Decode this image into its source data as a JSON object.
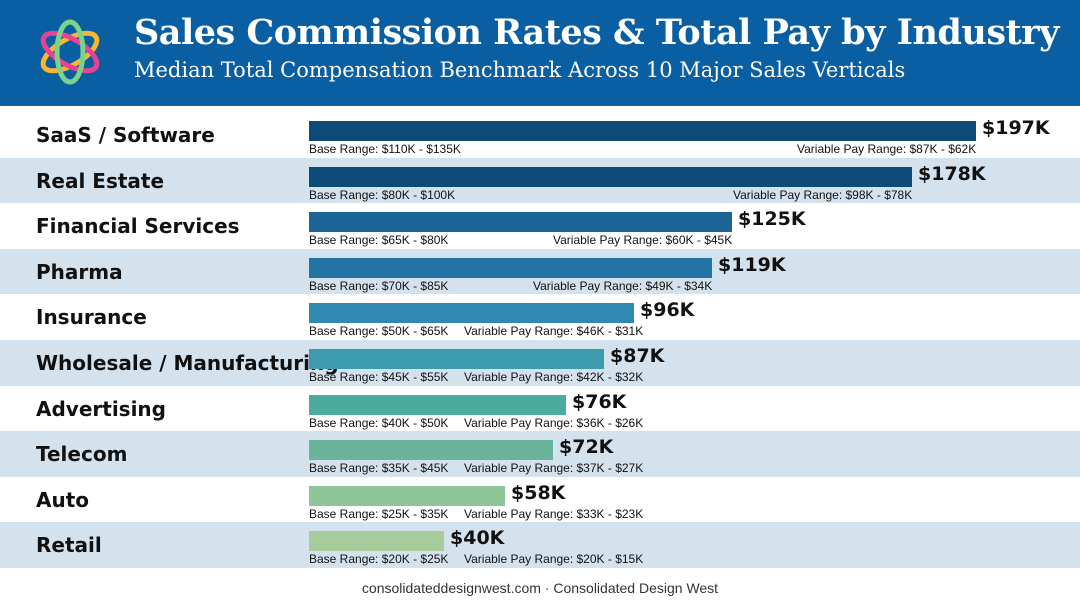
{
  "header": {
    "title": "Sales Commission Rates & Total Pay by Industry",
    "subtitle": "Median Total Compensation Benchmark Across 10 Major Sales Verticals",
    "logo_icon": "interlocking-rings-logo"
  },
  "footer": {
    "text": "consolidateddesignwest.com · Consolidated Design West"
  },
  "colors": {
    "header_bg": "#0a5ea2",
    "alt_row_bg": "#d4e2ee",
    "bar_colors": [
      "#0d4a78",
      "#0d4a78",
      "#1a6496",
      "#2474a3",
      "#3188b0",
      "#3e9aae",
      "#4dab9e",
      "#6ab59a",
      "#8ec59a",
      "#a6cc9c"
    ]
  },
  "chart_data": {
    "type": "bar",
    "orientation": "horizontal",
    "title": "Sales Commission Rates & Total Pay by Industry",
    "subtitle": "Median Total Compensation Benchmark Across 10 Major Sales Verticals",
    "xlim": [
      0,
      197
    ],
    "grid": false,
    "categories": [
      "SaaS / Software",
      "Real Estate",
      "Financial Services",
      "Pharma",
      "Insurance",
      "Wholesale / Manufacturing",
      "Advertising",
      "Telecom",
      "Auto",
      "Retail"
    ],
    "values": [
      197,
      178,
      125,
      119,
      96,
      87,
      76,
      72,
      58,
      40
    ],
    "value_labels": [
      "$197K",
      "$178K",
      "$125K",
      "$119K",
      "$96K",
      "$87K",
      "$76K",
      "$72K",
      "$58K",
      "$40K"
    ],
    "base_range_labels": [
      "Base Range: $110K - $135K",
      "Base Range: $80K - $100K",
      "Base Range: $65K - $80K",
      "Base Range: $70K - $85K",
      "Base Range: $50K - $65K",
      "Base Range: $45K - $55K",
      "Base Range: $40K - $50K",
      "Base Range: $35K - $45K",
      "Base Range: $25K - $35K",
      "Base Range: $20K - $25K"
    ],
    "variable_range_labels": [
      "Variable Pay Range: $87K - $62K",
      "Variable Pay Range: $98K - $78K",
      "Variable Pay Range: $60K - $45K",
      "Variable Pay Range: $49K - $34K",
      "Variable Pay Range: $46K - $31K",
      "Variable Pay Range: $42K - $32K",
      "Variable Pay Range: $36K - $26K",
      "Variable Pay Range: $37K - $27K",
      "Variable Pay Range: $33K - $23K",
      "Variable Pay Range: $20K - $15K"
    ]
  }
}
